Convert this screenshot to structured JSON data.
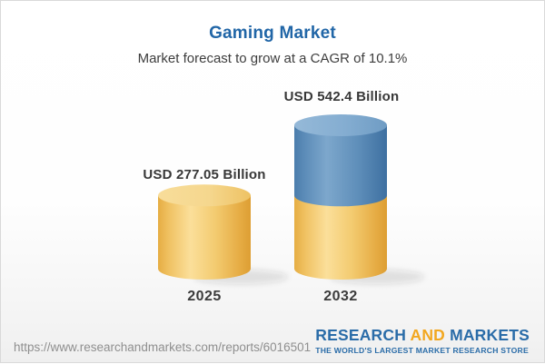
{
  "header": {
    "title": "Gaming Market",
    "subtitle": "Market forecast to grow at a CAGR of 10.1%"
  },
  "chart_data": {
    "type": "bar",
    "variant": "3d-cylinder-stacked-growth",
    "categories": [
      "2025",
      "2032"
    ],
    "values": [
      277.05,
      542.4
    ],
    "value_labels": [
      "USD 277.05 Billion",
      "USD 542.4 Billion"
    ],
    "unit": "USD Billion",
    "cagr_percent": "10.1",
    "legend_position": "none",
    "grid": false,
    "series_colors": {
      "base_gold": "#f0c35f",
      "growth_blue": "#5b89b4"
    }
  },
  "footer": {
    "url": "https://www.researchandmarkets.com/reports/6016501",
    "logo": {
      "word1": "RESEARCH",
      "word2": "AND",
      "word3": "MARKETS",
      "tagline": "THE WORLD'S LARGEST MARKET RESEARCH STORE"
    }
  },
  "colors": {
    "title_blue": "#2166a7",
    "subtitle_gray": "#3d3d3d",
    "url_gray": "#8f8f8f",
    "logo_blue": "#2a6ca8",
    "logo_orange": "#f2a71f",
    "background": "#ffffff",
    "border": "#d9d9d9"
  }
}
